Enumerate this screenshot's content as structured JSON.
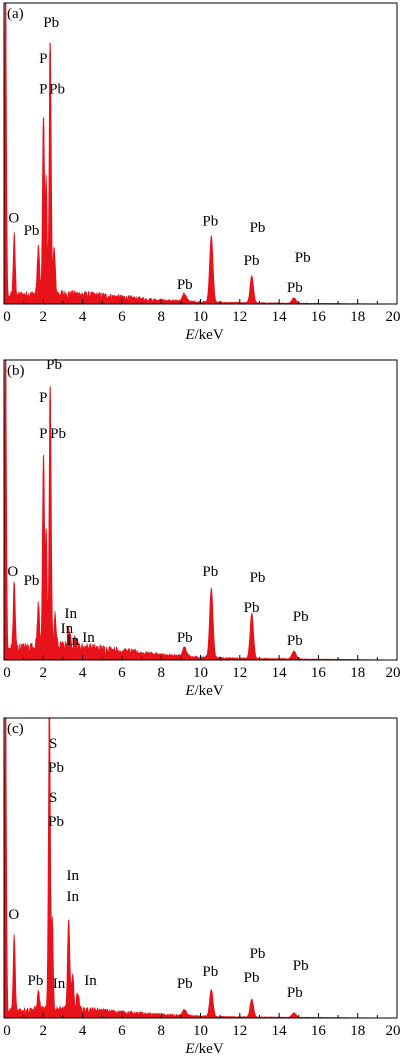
{
  "colors": {
    "spectrum": "#e8121b",
    "axis": "#000000",
    "background": "#ffffff"
  },
  "chart_data": [
    {
      "type": "line",
      "panel_label": "(a)",
      "xlabel_italic": "E",
      "xlabel_rest": "/keV",
      "ylabel": "",
      "xlim": [
        0,
        20
      ],
      "ylim": [
        0,
        100
      ],
      "grid": false,
      "legend": "none",
      "x_ticks": [
        "0",
        "2",
        "4",
        "6",
        "8",
        "10",
        "12",
        "14",
        "16",
        "18",
        "20"
      ],
      "peaks": [
        {
          "x": 0.08,
          "y": 100,
          "w": 0.06
        },
        {
          "x": 0.52,
          "y": 20,
          "w": 0.07
        },
        {
          "x": 1.75,
          "y": 16,
          "w": 0.08
        },
        {
          "x": 2.01,
          "y": 59,
          "w": 0.07
        },
        {
          "x": 2.15,
          "y": 38,
          "w": 0.06
        },
        {
          "x": 2.35,
          "y": 84,
          "w": 0.07
        },
        {
          "x": 2.55,
          "y": 15,
          "w": 0.08
        },
        {
          "x": 9.18,
          "y": 2.5,
          "w": 0.15
        },
        {
          "x": 10.55,
          "y": 22,
          "w": 0.12
        },
        {
          "x": 12.61,
          "y": 9,
          "w": 0.12
        },
        {
          "x": 14.76,
          "y": 1.8,
          "w": 0.15
        }
      ],
      "background_level": 2.6,
      "annotations": [
        {
          "text": "Pb",
          "x": 2.4,
          "y": 92
        },
        {
          "text": "P",
          "x": 2.0,
          "y": 80
        },
        {
          "text": "P",
          "x": 2.0,
          "y": 70
        },
        {
          "text": "Pb",
          "x": 2.7,
          "y": 70
        },
        {
          "text": "O",
          "x": 0.5,
          "y": 27
        },
        {
          "text": "Pb",
          "x": 1.4,
          "y": 23
        },
        {
          "text": "Pb",
          "x": 10.5,
          "y": 26
        },
        {
          "text": "Pb",
          "x": 12.9,
          "y": 24
        },
        {
          "text": "Pb",
          "x": 12.6,
          "y": 13
        },
        {
          "text": "Pb",
          "x": 15.2,
          "y": 14
        },
        {
          "text": "Pb",
          "x": 9.2,
          "y": 5
        },
        {
          "text": "Pb",
          "x": 14.8,
          "y": 4
        }
      ]
    },
    {
      "type": "line",
      "panel_label": "(b)",
      "xlabel_italic": "E",
      "xlabel_rest": "/keV",
      "ylabel": "",
      "xlim": [
        0,
        20
      ],
      "ylim": [
        0,
        100
      ],
      "grid": false,
      "legend": "none",
      "x_ticks": [
        "0",
        "2",
        "4",
        "6",
        "8",
        "10",
        "12",
        "14",
        "16",
        "18",
        "20"
      ],
      "peaks": [
        {
          "x": 0.08,
          "y": 100,
          "w": 0.06
        },
        {
          "x": 0.52,
          "y": 22,
          "w": 0.07
        },
        {
          "x": 1.75,
          "y": 14,
          "w": 0.08
        },
        {
          "x": 2.01,
          "y": 63,
          "w": 0.07
        },
        {
          "x": 2.15,
          "y": 38,
          "w": 0.06
        },
        {
          "x": 2.35,
          "y": 87,
          "w": 0.07
        },
        {
          "x": 2.6,
          "y": 10,
          "w": 0.08
        },
        {
          "x": 3.3,
          "y": 6,
          "w": 0.09
        },
        {
          "x": 3.6,
          "y": 3,
          "w": 0.09
        },
        {
          "x": 9.18,
          "y": 3,
          "w": 0.15
        },
        {
          "x": 10.55,
          "y": 23,
          "w": 0.12
        },
        {
          "x": 12.61,
          "y": 15,
          "w": 0.12
        },
        {
          "x": 14.76,
          "y": 2.6,
          "w": 0.15
        }
      ],
      "background_level": 3.5,
      "annotations": [
        {
          "text": "Pb",
          "x": 2.55,
          "y": 97
        },
        {
          "text": "P",
          "x": 2.0,
          "y": 86
        },
        {
          "text": "P",
          "x": 2.0,
          "y": 74
        },
        {
          "text": "Pb",
          "x": 2.75,
          "y": 74
        },
        {
          "text": "O",
          "x": 0.45,
          "y": 28
        },
        {
          "text": "Pb",
          "x": 1.4,
          "y": 25
        },
        {
          "text": "In",
          "x": 3.4,
          "y": 14
        },
        {
          "text": "In",
          "x": 3.2,
          "y": 9
        },
        {
          "text": "In",
          "x": 3.5,
          "y": 5
        },
        {
          "text": "In",
          "x": 4.3,
          "y": 6
        },
        {
          "text": "Pb",
          "x": 10.5,
          "y": 28
        },
        {
          "text": "Pb",
          "x": 12.9,
          "y": 26
        },
        {
          "text": "Pb",
          "x": 12.6,
          "y": 16
        },
        {
          "text": "Pb",
          "x": 15.1,
          "y": 13
        },
        {
          "text": "Pb",
          "x": 9.2,
          "y": 6
        },
        {
          "text": "Pb",
          "x": 14.8,
          "y": 5
        }
      ]
    },
    {
      "type": "line",
      "panel_label": "(c)",
      "xlabel_italic": "E",
      "xlabel_rest": "/keV",
      "ylabel": "",
      "xlim": [
        0,
        20
      ],
      "ylim": [
        0,
        100
      ],
      "grid": false,
      "legend": "none",
      "x_ticks": [
        "0",
        "2",
        "4",
        "6",
        "8",
        "10",
        "12",
        "14",
        "16",
        "18",
        "20"
      ],
      "peaks": [
        {
          "x": 0.08,
          "y": 100,
          "w": 0.06
        },
        {
          "x": 0.52,
          "y": 25,
          "w": 0.07
        },
        {
          "x": 1.75,
          "y": 6,
          "w": 0.08
        },
        {
          "x": 2.31,
          "y": 100,
          "w": 0.07
        },
        {
          "x": 2.46,
          "y": 30,
          "w": 0.06
        },
        {
          "x": 3.29,
          "y": 30,
          "w": 0.08
        },
        {
          "x": 3.49,
          "y": 12,
          "w": 0.08
        },
        {
          "x": 3.75,
          "y": 6,
          "w": 0.09
        },
        {
          "x": 9.18,
          "y": 2,
          "w": 0.15
        },
        {
          "x": 10.55,
          "y": 9,
          "w": 0.12
        },
        {
          "x": 12.61,
          "y": 6,
          "w": 0.12
        },
        {
          "x": 14.76,
          "y": 1.5,
          "w": 0.15
        }
      ],
      "background_level": 2.2,
      "annotations": [
        {
          "text": "S",
          "x": 2.5,
          "y": 90
        },
        {
          "text": "Pb",
          "x": 2.65,
          "y": 82
        },
        {
          "text": "S",
          "x": 2.5,
          "y": 72
        },
        {
          "text": "Pb",
          "x": 2.65,
          "y": 64
        },
        {
          "text": "In",
          "x": 3.5,
          "y": 46
        },
        {
          "text": "In",
          "x": 3.5,
          "y": 39
        },
        {
          "text": "O",
          "x": 0.5,
          "y": 33
        },
        {
          "text": "Pb",
          "x": 1.6,
          "y": 11
        },
        {
          "text": "In",
          "x": 2.8,
          "y": 10
        },
        {
          "text": "In",
          "x": 4.4,
          "y": 11
        },
        {
          "text": "Pb",
          "x": 10.5,
          "y": 14
        },
        {
          "text": "Pb",
          "x": 12.9,
          "y": 20
        },
        {
          "text": "Pb",
          "x": 12.6,
          "y": 12
        },
        {
          "text": "Pb",
          "x": 15.1,
          "y": 16
        },
        {
          "text": "Pb",
          "x": 9.2,
          "y": 10
        },
        {
          "text": "Pb",
          "x": 14.8,
          "y": 7
        }
      ]
    }
  ]
}
